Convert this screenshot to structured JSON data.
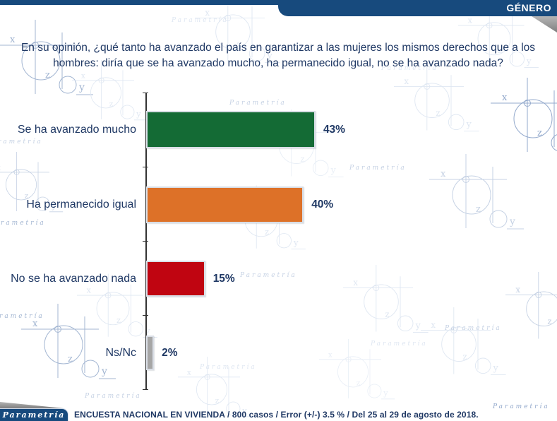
{
  "header": {
    "tag": "GÉNERO"
  },
  "chart_data": {
    "type": "bar",
    "orientation": "horizontal",
    "title": "En su opinión, ¿qué tanto ha avanzado el país en garantizar a las mujeres los mismos derechos que a los hombres: diría que se ha avanzado mucho, ha permanecido igual, no se ha avanzado nada?",
    "categories": [
      "Se ha avanzado mucho",
      "Ha permanecido igual",
      "No se ha avanzado nada",
      "Ns/Nc"
    ],
    "values": [
      43,
      40,
      15,
      2
    ],
    "value_labels": [
      "43%",
      "40%",
      "15%",
      "2%"
    ],
    "bar_colors": [
      "#146b35",
      "#dd7128",
      "#c00511",
      "#a6a6a6"
    ],
    "axis_max": 50,
    "grid": false,
    "legend": false,
    "data_labels": "outside-end"
  },
  "footer": {
    "logo": "Parametría",
    "note": "ENCUESTA NACIONAL EN VIVIENDA / 800 casos / Error (+/-) 3.5 % / Del 25 al 29 de agosto de 2018."
  },
  "watermark": {
    "text": "Parametría",
    "letters": [
      "x",
      "y",
      "z"
    ]
  },
  "colors": {
    "navy": "#174a7d",
    "text_navy": "#1f3864",
    "green": "#146b35",
    "orange": "#dd7128",
    "red": "#c00511",
    "gray": "#a6a6a6",
    "fold_gray": "#9b9b9b"
  }
}
